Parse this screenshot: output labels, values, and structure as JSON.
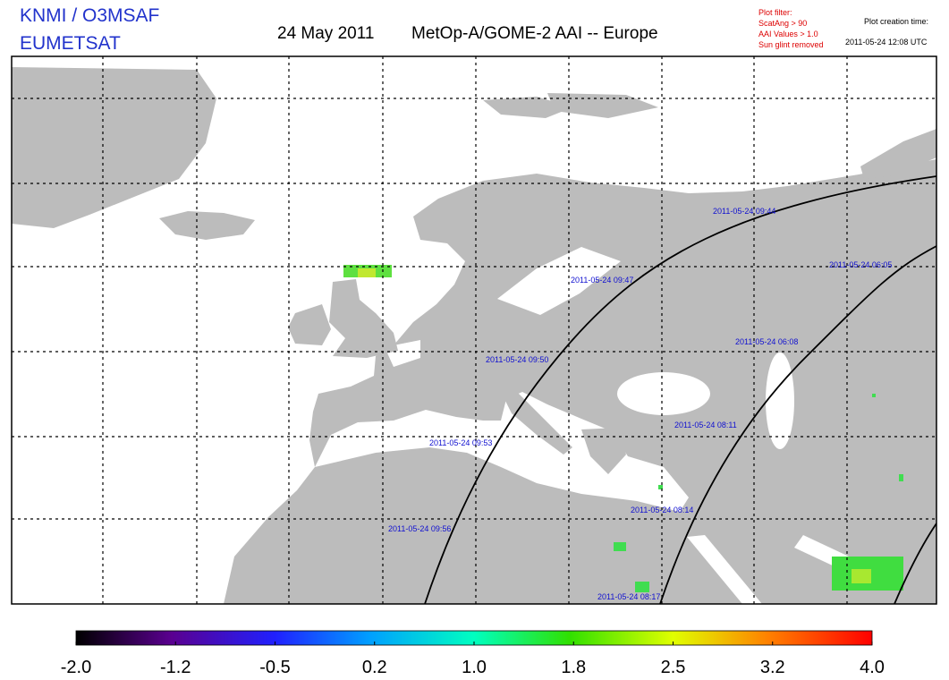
{
  "header": {
    "agency": "KNMI / O3MSAF",
    "organisation": "EUMETSAT",
    "date": "24 May 2011",
    "title": "MetOp-A/GOME-2 AAI -- Europe",
    "plot_filter": {
      "heading": "Plot filter:",
      "lines": [
        "ScatAng > 90",
        "AAI Values > 1.0",
        "Sun glint removed"
      ]
    },
    "creation_time": {
      "heading": "Plot creation time:",
      "value": "2011-05-24 12:08 UTC"
    }
  },
  "orbit_labels": [
    "2011-05-24 09:44",
    "2011-05-24 09:47",
    "2011-05-24 09:50",
    "2011-05-24 09:53",
    "2011-05-24 09:56",
    "2011-05-24 06:05",
    "2011-05-24 06:08",
    "2011-05-24 08:11",
    "2011-05-24 08:14",
    "2011-05-24 08:17"
  ],
  "colorbar": {
    "range": [
      -2,
      4
    ],
    "ticks": [
      {
        "value": -2,
        "label": "-2.0"
      },
      {
        "value": -1.25,
        "label": "-1.2"
      },
      {
        "value": -0.5,
        "label": "-0.5"
      },
      {
        "value": 0.25,
        "label": "0.2"
      },
      {
        "value": 1,
        "label": "1.0"
      },
      {
        "value": 1.75,
        "label": "1.8"
      },
      {
        "value": 2.5,
        "label": "2.5"
      },
      {
        "value": 3.25,
        "label": "3.2"
      },
      {
        "value": 4,
        "label": "4.0"
      }
    ]
  }
}
